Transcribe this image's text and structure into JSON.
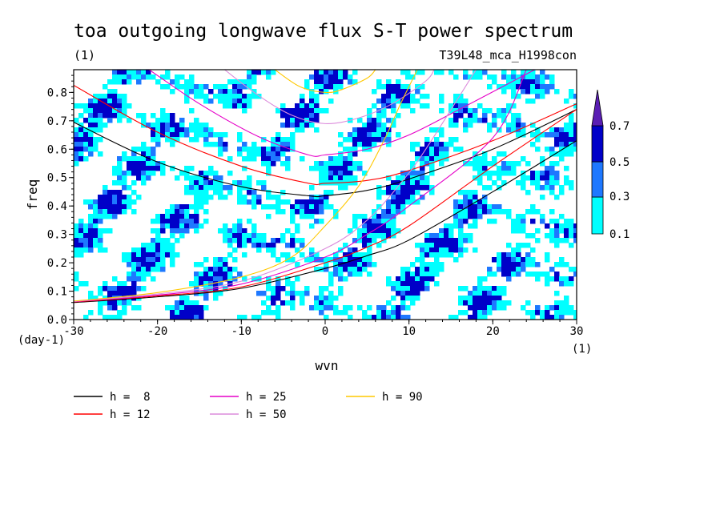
{
  "chart_data": {
    "type": "contour",
    "title": "toa outgoing longwave flux S-T power spectrum",
    "subtitle_left": "(1)",
    "subtitle_right": "T39L48_mca_H1998con",
    "xlabel": "wvn",
    "ylabel": "freq",
    "x_unit": "(1)",
    "y_unit": "(day-1)",
    "xlim": [
      -30,
      30
    ],
    "ylim": [
      0,
      0.88
    ],
    "x_ticks": [
      -30,
      -20,
      -10,
      0,
      10,
      20,
      30
    ],
    "x_tick_labels": [
      "-30",
      "-20",
      "-10",
      "0",
      "10",
      "20",
      "30"
    ],
    "y_ticks": [
      0.0,
      0.1,
      0.2,
      0.3,
      0.4,
      0.5,
      0.6,
      0.7,
      0.8
    ],
    "y_tick_labels": [
      "0.0",
      "0.1",
      "0.2",
      "0.3",
      "0.4",
      "0.5",
      "0.6",
      "0.7",
      "0.8"
    ],
    "contour_levels": [
      0.1,
      0.3,
      0.5,
      0.7
    ],
    "colorbar": {
      "labels": [
        "0.1",
        "0.3",
        "0.5",
        "0.7"
      ],
      "colors": [
        "#00ffff",
        "#1e78ff",
        "#0000c8",
        "#5a1eb4"
      ]
    },
    "series": [
      {
        "name": "h =  8",
        "color": "#000000",
        "inertio_gravity": [
          [
            -30,
            0.695
          ],
          [
            -20,
            0.555
          ],
          [
            -10,
            0.468
          ],
          [
            -2,
            0.436
          ],
          [
            0,
            0.436
          ],
          [
            5,
            0.455
          ],
          [
            10,
            0.495
          ],
          [
            20,
            0.6
          ],
          [
            30,
            0.74
          ]
        ],
        "kelvin": [
          [
            -30,
            0.06
          ],
          [
            -20,
            0.08
          ],
          [
            -10,
            0.11
          ],
          [
            0,
            0.18
          ],
          [
            5,
            0.225
          ],
          [
            10,
            0.28
          ],
          [
            20,
            0.45
          ],
          [
            30,
            0.63
          ]
        ]
      },
      {
        "name": "h = 12",
        "color": "#ff0000",
        "inertio_gravity": [
          [
            -30,
            0.825
          ],
          [
            -20,
            0.66
          ],
          [
            -10,
            0.54
          ],
          [
            -2,
            0.48
          ],
          [
            0,
            0.48
          ],
          [
            5,
            0.49
          ],
          [
            10,
            0.525
          ],
          [
            20,
            0.63
          ],
          [
            30,
            0.76
          ]
        ],
        "kelvin": [
          [
            -30,
            0.062
          ],
          [
            -20,
            0.083
          ],
          [
            -10,
            0.115
          ],
          [
            0,
            0.2
          ],
          [
            5,
            0.255
          ],
          [
            10,
            0.33
          ],
          [
            20,
            0.54
          ],
          [
            30,
            0.74
          ]
        ]
      },
      {
        "name": "h = 25",
        "color": "#e600c8",
        "inertio_gravity": [
          [
            -21,
            0.88
          ],
          [
            -15,
            0.76
          ],
          [
            -8,
            0.645
          ],
          [
            -2,
            0.58
          ],
          [
            0,
            0.58
          ],
          [
            5,
            0.6
          ],
          [
            10,
            0.65
          ],
          [
            16,
            0.74
          ],
          [
            25,
            0.88
          ]
        ],
        "kelvin": [
          [
            -30,
            0.063
          ],
          [
            -20,
            0.086
          ],
          [
            -10,
            0.125
          ],
          [
            0,
            0.22
          ],
          [
            5,
            0.3
          ],
          [
            10,
            0.4
          ],
          [
            20,
            0.64
          ],
          [
            24,
            0.88
          ]
        ]
      },
      {
        "name": "h = 50",
        "color": "#dc8cdc",
        "inertio_gravity": [
          [
            -12,
            0.88
          ],
          [
            -8,
            0.79
          ],
          [
            -4,
            0.72
          ],
          [
            0,
            0.69
          ],
          [
            4,
            0.71
          ],
          [
            8,
            0.76
          ],
          [
            12,
            0.84
          ],
          [
            13,
            0.88
          ]
        ],
        "kelvin": [
          [
            -30,
            0.064
          ],
          [
            -20,
            0.09
          ],
          [
            -10,
            0.135
          ],
          [
            0,
            0.25
          ],
          [
            5,
            0.35
          ],
          [
            9,
            0.48
          ],
          [
            12,
            0.6
          ],
          [
            18,
            0.88
          ]
        ]
      },
      {
        "name": "h = 90",
        "color": "#ffc800",
        "inertio_gravity": [
          [
            -6,
            0.88
          ],
          [
            -3,
            0.82
          ],
          [
            0,
            0.8
          ],
          [
            2,
            0.81
          ],
          [
            5,
            0.85
          ],
          [
            6,
            0.88
          ]
        ],
        "kelvin": [
          [
            -30,
            0.065
          ],
          [
            -20,
            0.095
          ],
          [
            -10,
            0.15
          ],
          [
            -4,
            0.22
          ],
          [
            0,
            0.33
          ],
          [
            4,
            0.47
          ],
          [
            7,
            0.63
          ],
          [
            9,
            0.76
          ],
          [
            11,
            0.88
          ]
        ]
      }
    ]
  }
}
